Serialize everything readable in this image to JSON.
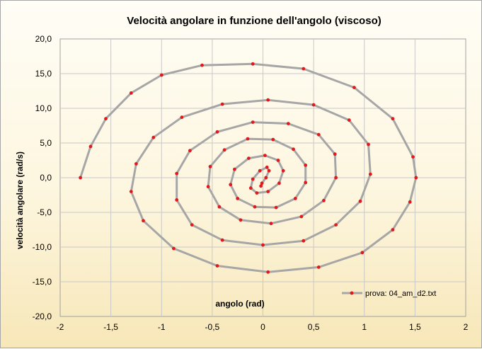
{
  "chart_data": {
    "type": "scatter",
    "title": "Velocità angolare in funzione dell'angolo (viscoso)",
    "xlabel": "angolo (rad)",
    "ylabel": "velocità angolare (rad/s)",
    "xlim": [
      -2,
      2
    ],
    "ylim": [
      -20,
      20
    ],
    "x_ticks": [
      "-2",
      "-1,5",
      "-1",
      "-0,5",
      "0",
      "0,5",
      "1",
      "1,5",
      "2"
    ],
    "y_ticks": [
      "20,0",
      "15,0",
      "10,0",
      "5,0",
      "0,0",
      "-5,0",
      "-10,0",
      "-15,0",
      "-20,0"
    ],
    "grid": true,
    "legend_position": "bottom-right",
    "series": [
      {
        "name": "prova: 04_am_d2.txt",
        "style": "line-with-markers",
        "line_color": "#a6a6a6",
        "marker_color": "#e0191d",
        "turns": [
          {
            "x": [
              -1.8,
              -1.7,
              -1.55,
              -1.3,
              -1.0,
              -0.6,
              -0.1,
              0.4,
              0.9,
              1.28,
              1.48,
              1.51,
              1.45,
              1.28,
              0.98,
              0.55,
              0.05,
              -0.45,
              -0.88,
              -1.18,
              -1.3,
              -1.25,
              -1.08,
              -0.8,
              -0.4,
              0.05,
              0.5,
              0.85,
              1.04,
              1.06,
              0.96,
              0.72,
              0.4,
              0.0,
              -0.4,
              -0.7,
              -0.85,
              -0.85,
              -0.72,
              -0.45,
              -0.1,
              0.25,
              0.55,
              0.71,
              0.72,
              0.6,
              0.38,
              0.08,
              -0.22,
              -0.43,
              -0.54,
              -0.52,
              -0.38,
              -0.15,
              0.1,
              0.3,
              0.42,
              0.42,
              0.32,
              0.13,
              -0.08,
              -0.25,
              -0.32,
              -0.28,
              -0.14,
              0.02,
              0.15,
              0.2,
              0.16,
              0.05,
              -0.06,
              -0.12,
              -0.1,
              -0.03,
              0.04,
              0.06,
              0.03,
              -0.01,
              -0.02
            ],
            "y": [
              0.0,
              4.5,
              8.5,
              12.2,
              14.8,
              16.2,
              16.4,
              15.7,
              13.0,
              8.5,
              3.0,
              0.0,
              -3.5,
              -7.5,
              -10.8,
              -12.9,
              -13.6,
              -12.7,
              -10.2,
              -6.2,
              -2.0,
              2.0,
              5.8,
              8.7,
              10.6,
              11.2,
              10.5,
              8.3,
              4.8,
              0.5,
              -3.4,
              -6.8,
              -9.1,
              -9.7,
              -9.0,
              -6.8,
              -3.2,
              0.6,
              3.9,
              6.6,
              8.0,
              7.8,
              6.2,
              3.4,
              0.0,
              -3.3,
              -5.6,
              -6.6,
              -6.1,
              -4.2,
              -1.3,
              1.6,
              4.0,
              5.6,
              5.5,
              4.1,
              1.8,
              -0.7,
              -3.0,
              -4.3,
              -4.2,
              -3.0,
              -1.0,
              1.2,
              2.8,
              3.2,
              2.5,
              1.0,
              -0.8,
              -2.0,
              -2.2,
              -1.5,
              -0.2,
              1.0,
              1.5,
              1.0,
              0.0,
              -0.8,
              -1.2
            ]
          }
        ]
      }
    ]
  }
}
